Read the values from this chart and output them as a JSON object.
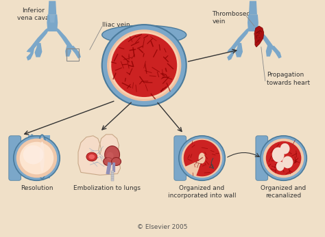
{
  "background_color": "#f0e0c8",
  "vein_blue": "#7ba7c9",
  "vein_dark_blue": "#4a7a9b",
  "vein_mid": "#9bbdd6",
  "thrombus_red": "#cc2222",
  "thrombus_dark": "#8b0000",
  "vessel_pink": "#f0c8aa",
  "vessel_light": "#fce8da",
  "text_color": "#333333",
  "label_inferior_vena_cava": "Inferior\nvena cava",
  "label_iliac_vein": "Iliac vein",
  "label_thrombosed_vein": "Thrombosed\nvein",
  "label_propagation": "Propagation\ntowards heart",
  "label_resolution": "Resolution",
  "label_embolization": "Embolization to lungs",
  "label_organized_wall": "Organized and\nincorporated into wall",
  "label_organized_recan": "Organized and\nrecanalized",
  "copyright": "© Elsevier 2005",
  "lung_color": "#f5dcc8",
  "heart_color": "#c05050"
}
